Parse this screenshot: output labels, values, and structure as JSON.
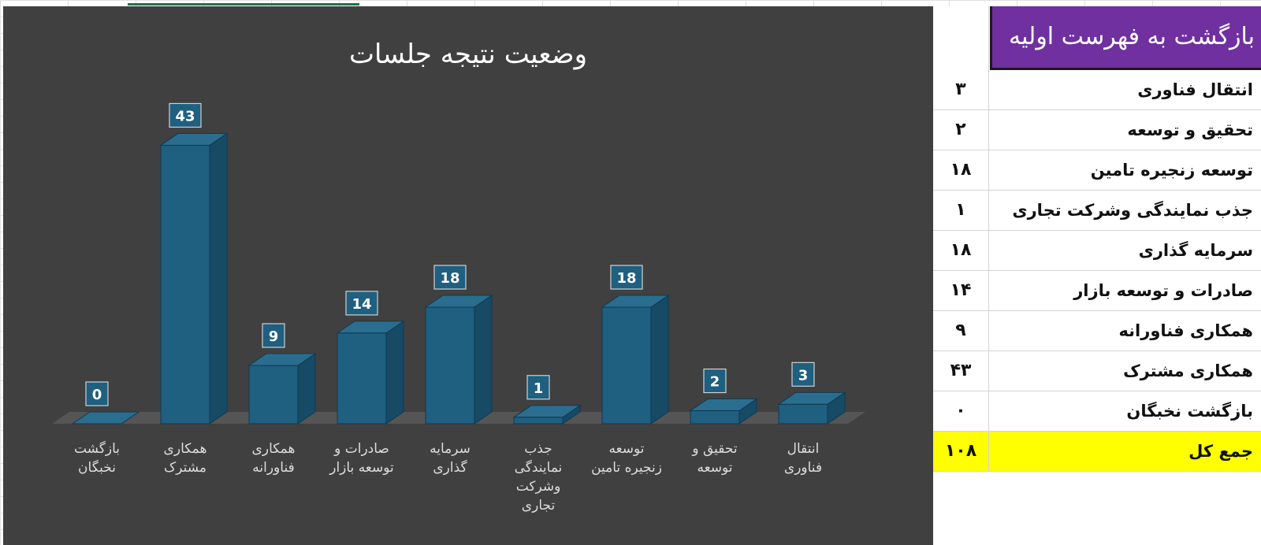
{
  "chart_data": {
    "type": "bar",
    "title": "وضعیت نتیجه جلسات",
    "categories": [
      [
        "بازگشت",
        "نخبگان"
      ],
      [
        "همکاری",
        "مشترک"
      ],
      [
        "همکاری",
        "فناورانه"
      ],
      [
        "صادرات و",
        "توسعه بازار"
      ],
      [
        "سرمایه",
        "گذاری"
      ],
      [
        "جذب",
        "نمایندگی",
        "وشرکت",
        "تجاری"
      ],
      [
        "توسعه",
        "زنجیره تامین"
      ],
      [
        "تحقیق و",
        "توسعه"
      ],
      [
        "انتقال",
        "فناوری"
      ]
    ],
    "values": [
      0,
      43,
      9,
      14,
      18,
      1,
      18,
      2,
      3
    ],
    "data_labels": [
      "0",
      "43",
      "9",
      "14",
      "18",
      "1",
      "18",
      "2",
      "3"
    ],
    "ylim": [
      0,
      45
    ],
    "grid": false,
    "legend": "none",
    "bar_color": "#1f5f80",
    "background": "#404040"
  },
  "table": {
    "header": "بازگشت به فهرست اولیه",
    "rows": [
      {
        "name": "انتقال فناوری",
        "value": "۳"
      },
      {
        "name": "تحقیق و توسعه",
        "value": "۲"
      },
      {
        "name": "توسعه زنجیره تامین",
        "value": "۱۸"
      },
      {
        "name": "جذب نمایندگی وشرکت تجاری",
        "value": "۱"
      },
      {
        "name": "سرمایه گذاری",
        "value": "۱۸"
      },
      {
        "name": "صادرات و توسعه بازار",
        "value": "۱۴"
      },
      {
        "name": "همکاری فناورانه",
        "value": "۹"
      },
      {
        "name": "همکاری مشترک",
        "value": "۴۳"
      },
      {
        "name": "بازگشت نخبگان",
        "value": "۰"
      }
    ],
    "total": {
      "name": "جمع کل",
      "value": "۱۰۸"
    },
    "header_color": "#7030a0",
    "total_color": "#ffff00"
  }
}
